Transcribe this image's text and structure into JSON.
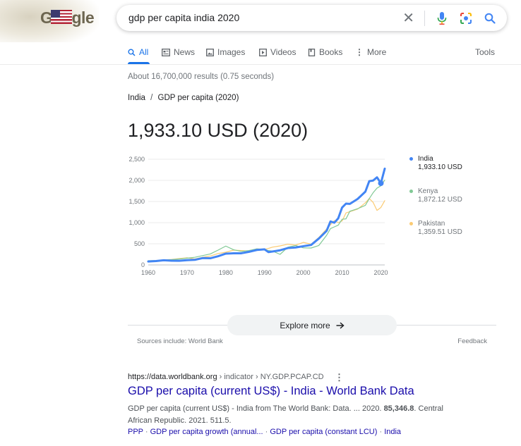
{
  "logo": {
    "text": "Google"
  },
  "search": {
    "query": "gdp per capita india 2020"
  },
  "tabs": [
    {
      "label": "All",
      "icon": "search-icon"
    },
    {
      "label": "News",
      "icon": "news-icon"
    },
    {
      "label": "Images",
      "icon": "images-icon"
    },
    {
      "label": "Videos",
      "icon": "videos-icon"
    },
    {
      "label": "Books",
      "icon": "books-icon"
    },
    {
      "label": "More",
      "icon": "more-vert-icon"
    }
  ],
  "tools_label": "Tools",
  "result_stats": "About 16,700,000 results (0.75 seconds)",
  "breadcrumb": {
    "country": "India",
    "separator": "/",
    "metric": "GDP per capita (2020)"
  },
  "headline_value": "1,933.10 USD (2020)",
  "colors": {
    "india": "#4285f4",
    "kenya": "#81c995",
    "pakistan": "#fbcb73",
    "accent": "#1a73e8",
    "link": "#1a0dab"
  },
  "chart_data": {
    "type": "line",
    "ylim": [
      0,
      2500
    ],
    "xlim": [
      1960,
      2021
    ],
    "x_ticks": [
      "1960",
      "1970",
      "1980",
      "1990",
      "2000",
      "2010",
      "2020"
    ],
    "y_ticks": [
      "0",
      "500",
      "1,000",
      "1,500",
      "2,000",
      "2,500"
    ],
    "grid": true,
    "legend_position": "right",
    "x": [
      1960,
      1962,
      1964,
      1966,
      1968,
      1970,
      1972,
      1974,
      1976,
      1978,
      1980,
      1982,
      1984,
      1986,
      1988,
      1990,
      1991,
      1992,
      1994,
      1996,
      1998,
      2000,
      2002,
      2004,
      2006,
      2007,
      2008,
      2009,
      2010,
      2011,
      2012,
      2014,
      2016,
      2017,
      2018,
      2019,
      2020,
      2021
    ],
    "series": [
      {
        "name": "India",
        "value_label": "1,933.10 USD",
        "values": [
          82,
          92,
          111,
          100,
          98,
          112,
          120,
          162,
          158,
          205,
          267,
          276,
          276,
          310,
          354,
          368,
          303,
          317,
          346,
          399,
          413,
          443,
          472,
          624,
          806,
          1028,
          999,
          1102,
          1358,
          1450,
          1444,
          1560,
          1733,
          1981,
          1996,
          2072,
          1933,
          2277
        ]
      },
      {
        "name": "Kenya",
        "value_label": "1,872.12 USD",
        "values": [
          100,
          105,
          115,
          125,
          140,
          160,
          180,
          220,
          260,
          350,
          446,
          360,
          320,
          340,
          380,
          365,
          340,
          330,
          250,
          420,
          460,
          403,
          400,
          460,
          700,
          860,
          900,
          940,
          1080,
          1090,
          1270,
          1330,
          1410,
          1568,
          1708,
          1817,
          1872,
          2007
        ]
      },
      {
        "name": "Pakistan",
        "value_label": "1,359.51 USD",
        "values": [
          90,
          100,
          120,
          130,
          150,
          170,
          140,
          180,
          210,
          270,
          300,
          350,
          340,
          330,
          380,
          370,
          390,
          420,
          450,
          490,
          470,
          533,
          490,
          650,
          850,
          950,
          1050,
          1000,
          1040,
          1230,
          1260,
          1320,
          1470,
          1570,
          1480,
          1290,
          1359,
          1520
        ]
      }
    ]
  },
  "explore_more": "Explore more",
  "sources": "Sources include: World Bank",
  "feedback": "Feedback",
  "result": {
    "cite_domain": "https://data.worldbank.org",
    "cite_path": " › indicator › NY.GDP.PCAP.CD",
    "title": "GDP per capita (current US$) - India - World Bank Data",
    "snippet_pre": "GDP per capita (current US$) - India from The World Bank: Data. ... 2020. ",
    "snippet_bold": "85,346.8",
    "snippet_post": ". Central African Republic. 2021. 511.5.",
    "sitelinks": [
      "PPP",
      "GDP per capita growth (annual...",
      "GDP per capita (constant LCU)",
      "India"
    ]
  }
}
